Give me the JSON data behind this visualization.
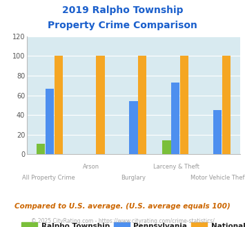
{
  "title_line1": "2019 Ralpho Township",
  "title_line2": "Property Crime Comparison",
  "categories": [
    "All Property Crime",
    "Arson",
    "Burglary",
    "Larceny & Theft",
    "Motor Vehicle Theft"
  ],
  "ralpho": [
    11,
    0,
    0,
    14,
    0
  ],
  "pennsylvania": [
    67,
    0,
    54,
    73,
    45
  ],
  "national": [
    100,
    100,
    100,
    100,
    100
  ],
  "bar_color_ralpho": "#7abf3a",
  "bar_color_pennsylvania": "#4d8fef",
  "bar_color_national": "#f5a623",
  "ylim": [
    0,
    120
  ],
  "yticks": [
    0,
    20,
    40,
    60,
    80,
    100,
    120
  ],
  "title_color": "#1a5fcc",
  "bg_color": "#d8eaf0",
  "xlabel_color": "#999999",
  "legend_label_ralpho": "Ralpho Township",
  "legend_label_pennsylvania": "Pennsylvania",
  "legend_label_national": "National",
  "legend_text_color": "#222222",
  "footnote1": "Compared to U.S. average. (U.S. average equals 100)",
  "footnote2": "© 2025 CityRating.com - https://www.cityrating.com/crime-statistics/",
  "footnote1_color": "#cc6600",
  "footnote2_color": "#aaaaaa",
  "footnote2_url_color": "#4488cc"
}
